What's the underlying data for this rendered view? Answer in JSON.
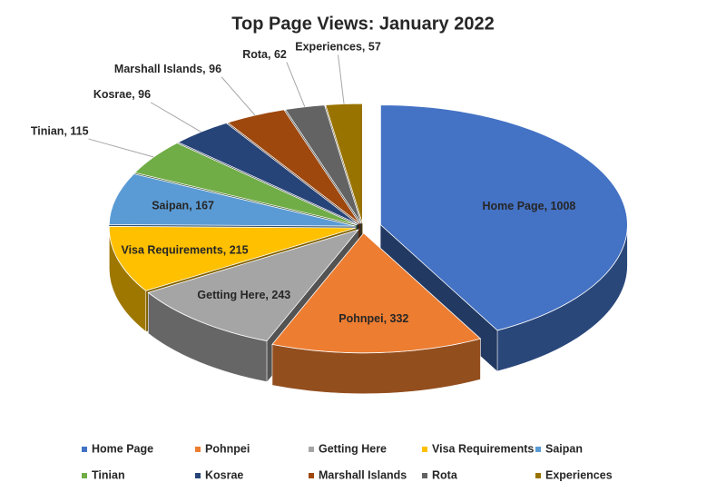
{
  "chart_data": {
    "type": "pie3d",
    "title": "Top Page Views: January 2022",
    "categories": [
      "Home Page",
      "Pohnpei",
      "Getting Here",
      "Visa Requirements",
      "Saipan",
      "Tinian",
      "Kosrae",
      "Marshall Islands",
      "Rota",
      "Experiences"
    ],
    "values": [
      1008,
      332,
      243,
      215,
      167,
      115,
      96,
      96,
      62,
      57
    ],
    "value_labels": [
      "Home Page, 1008",
      "Pohnpei, 332",
      "Getting Here, 243",
      "Visa Requirements, 215",
      "Saipan, 167",
      "Tinian, 115",
      "Kosrae, 96",
      "Marshall Islands, 96",
      "Rota, 62",
      "Experiences, 57"
    ],
    "colors": [
      "#4472c4",
      "#ed7d31",
      "#a5a5a5",
      "#ffc000",
      "#5b9bd5",
      "#70ad47",
      "#264478",
      "#9e480e",
      "#636363",
      "#997300"
    ],
    "legend": "bottom"
  }
}
